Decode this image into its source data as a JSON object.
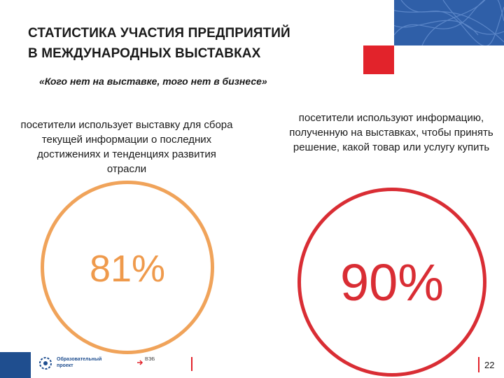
{
  "slide": {
    "title_line1": "СТАТИСТИКА УЧАСТИЯ ПРЕДПРИЯТИЙ",
    "title_line2": "В МЕЖДУНАРОДНЫХ ВЫСТАВКАХ",
    "quote": "«Кого нет на выставке, того нет в бизнесе»",
    "left": {
      "description": "посетители использует выставку для сбора текущей информации о последних достижениях и тенденциях развития отрасли",
      "percent": "81%",
      "color": "#ef9a4c"
    },
    "right": {
      "description": "посетители используют информацию, полученную на выставках, чтобы принять решение, какой товар или услугу купить",
      "percent": "90%",
      "color": "#d92d34"
    }
  },
  "footer": {
    "logo1_line1": "Образовательный",
    "logo1_line2": "проект",
    "logo2_text": "ВЭБ",
    "page_number": "22"
  },
  "colors": {
    "accent_red": "#e2232b",
    "brand_blue": "#1f4e8f"
  }
}
